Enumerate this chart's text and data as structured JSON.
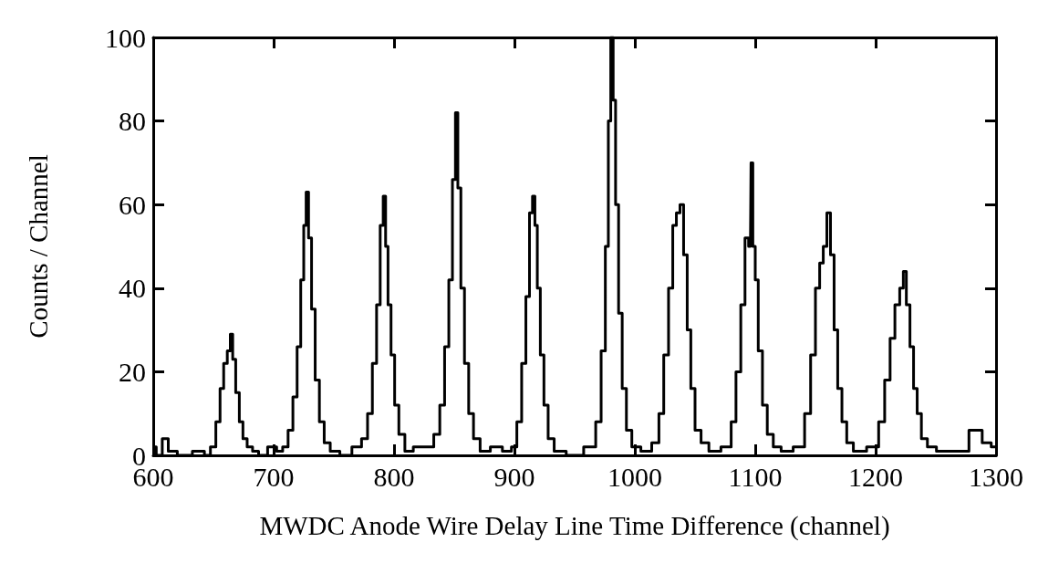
{
  "chart_data": {
    "type": "step",
    "xlabel": "MWDC Anode Wire Delay Line Time Difference (channel)",
    "ylabel": "Counts / Channel",
    "xlim": [
      600,
      1300
    ],
    "xticks": [
      600,
      700,
      800,
      900,
      1000,
      1100,
      1200,
      1300
    ],
    "ylim": [
      0,
      100
    ],
    "yticks": [
      0,
      20,
      40,
      60,
      80,
      100
    ],
    "grid": false,
    "series": [
      {
        "color": "#000000",
        "x": [
          600,
          605,
          610,
          615,
          625,
          640,
          645,
          650,
          654,
          657,
          660,
          663,
          665,
          667,
          670,
          673,
          676,
          680,
          685,
          690,
          700,
          705,
          710,
          714,
          718,
          721,
          724,
          726,
          728,
          730,
          733,
          736,
          740,
          744,
          750,
          760,
          770,
          776,
          780,
          784,
          787,
          790,
          792,
          794,
          796,
          799,
          802,
          806,
          812,
          820,
          830,
          836,
          840,
          844,
          847,
          850,
          852,
          854,
          857,
          860,
          864,
          868,
          875,
          885,
          895,
          900,
          904,
          908,
          911,
          914,
          916,
          918,
          920,
          923,
          926,
          930,
          936,
          950,
          965,
          970,
          974,
          977,
          979,
          981,
          983,
          985,
          988,
          991,
          995,
          1000,
          1010,
          1018,
          1022,
          1026,
          1030,
          1033,
          1036,
          1039,
          1042,
          1045,
          1048,
          1052,
          1058,
          1065,
          1078,
          1082,
          1086,
          1090,
          1093,
          1096,
          1097,
          1099,
          1101,
          1104,
          1108,
          1112,
          1118,
          1125,
          1138,
          1144,
          1148,
          1152,
          1155,
          1158,
          1161,
          1164,
          1167,
          1170,
          1174,
          1178,
          1185,
          1200,
          1205,
          1210,
          1214,
          1218,
          1222,
          1224,
          1227,
          1230,
          1233,
          1236,
          1240,
          1246,
          1255,
          1270,
          1285,
          1292,
          1300
        ],
        "values": [
          2,
          0,
          4,
          1,
          0,
          1,
          0,
          2,
          8,
          16,
          22,
          25,
          29,
          23,
          15,
          8,
          4,
          2,
          1,
          0,
          2,
          1,
          2,
          6,
          14,
          26,
          42,
          55,
          63,
          52,
          35,
          18,
          8,
          3,
          1,
          0,
          2,
          4,
          10,
          22,
          36,
          55,
          62,
          50,
          36,
          24,
          12,
          5,
          1,
          2,
          2,
          5,
          12,
          26,
          42,
          66,
          82,
          64,
          40,
          22,
          10,
          4,
          1,
          2,
          1,
          2,
          8,
          22,
          38,
          58,
          62,
          55,
          40,
          24,
          12,
          4,
          1,
          0,
          2,
          8,
          25,
          50,
          80,
          100,
          85,
          60,
          34,
          16,
          6,
          2,
          1,
          3,
          10,
          24,
          40,
          55,
          58,
          60,
          48,
          30,
          16,
          6,
          3,
          1,
          2,
          8,
          20,
          36,
          52,
          50,
          70,
          50,
          42,
          25,
          12,
          5,
          2,
          1,
          2,
          10,
          24,
          40,
          46,
          50,
          58,
          48,
          30,
          16,
          8,
          3,
          1,
          2,
          8,
          18,
          28,
          36,
          40,
          44,
          36,
          26,
          16,
          10,
          4,
          2,
          1,
          1,
          6,
          3,
          2
        ]
      }
    ]
  }
}
